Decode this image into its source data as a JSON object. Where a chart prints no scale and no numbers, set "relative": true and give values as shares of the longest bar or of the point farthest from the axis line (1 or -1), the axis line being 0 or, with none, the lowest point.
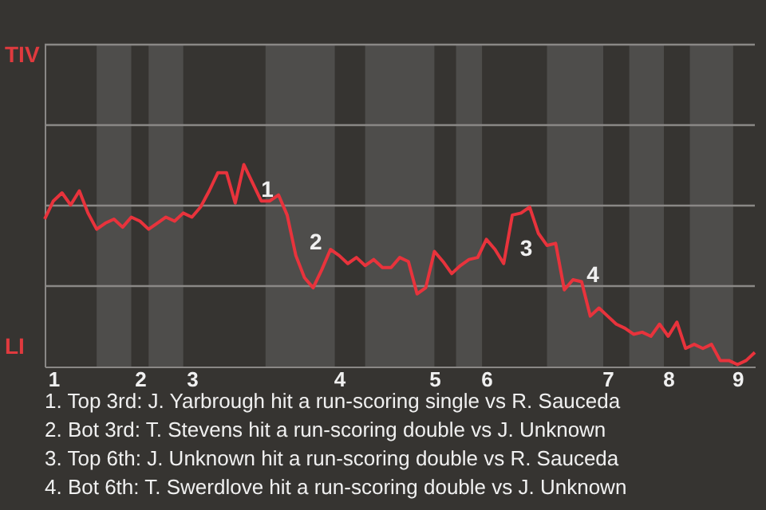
{
  "chart_data": {
    "type": "line",
    "relative": true,
    "marker": "none",
    "line_style": "solid",
    "ref_lines": [
      {
        "axis": "y",
        "value": 0.3985,
        "color": "#8a8886"
      },
      {
        "axis": "y",
        "value": 0.797,
        "color": "#8a8886"
      },
      {
        "axis": "y",
        "value": 1.1955,
        "color": "#8a8886"
      },
      {
        "axis": "y",
        "value": 1.594,
        "color": "#8a8886"
      }
    ],
    "categories": [
      null,
      "1",
      null,
      null,
      null,
      null,
      null,
      null,
      null,
      null,
      null,
      "2",
      null,
      null,
      null,
      null,
      null,
      "3",
      null,
      null,
      null,
      null,
      null,
      null,
      null,
      null,
      null,
      null,
      null,
      null,
      null,
      null,
      null,
      null,
      "4",
      null,
      null,
      null,
      null,
      null,
      null,
      null,
      null,
      null,
      null,
      "5",
      null,
      null,
      null,
      null,
      null,
      "6",
      null,
      null,
      null,
      null,
      null,
      null,
      null,
      null,
      null,
      null,
      null,
      null,
      null,
      "7",
      null,
      null,
      null,
      null,
      null,
      null,
      "8",
      null,
      null,
      null,
      null,
      null,
      null,
      null,
      "9",
      null,
      null
    ],
    "series": [
      {
        "color": "#e8333c",
        "values": [
          0.73,
          0.82,
          0.86,
          0.8,
          0.87,
          0.76,
          0.68,
          0.71,
          0.73,
          0.69,
          0.74,
          0.72,
          0.68,
          0.71,
          0.74,
          0.72,
          0.76,
          0.74,
          0.79,
          0.87,
          0.96,
          0.96,
          0.81,
          1.0,
          0.91,
          0.82,
          0.82,
          0.85,
          0.75,
          0.55,
          0.44,
          0.39,
          0.48,
          0.58,
          0.55,
          0.51,
          0.54,
          0.5,
          0.53,
          0.49,
          0.49,
          0.54,
          0.52,
          0.36,
          0.39,
          0.57,
          0.52,
          0.46,
          0.5,
          0.53,
          0.54,
          0.63,
          0.58,
          0.51,
          0.75,
          0.76,
          0.79,
          0.66,
          0.6,
          0.61,
          0.38,
          0.43,
          0.42,
          0.25,
          0.29,
          0.25,
          0.21,
          0.19,
          0.16,
          0.17,
          0.15,
          0.21,
          0.15,
          0.22,
          0.09,
          0.11,
          0.09,
          0.11,
          0.03,
          0.03,
          0.01,
          0.03,
          0.07
        ]
      }
    ],
    "annotations": [
      "TIV",
      "LI",
      "1",
      "2",
      "3",
      "4",
      "1. Top 3rd: J. Yarbrough hit a run-scoring single vs R. Sauceda",
      "2. Bot 3rd: T. Stevens hit a run-scoring double vs J. Unknown",
      "3. Top 6th: J. Unknown hit a run-scoring double vs R. Sauceda",
      "4. Bot 6th: T. Swerdlove hit a run-scoring double vs J. Unknown"
    ]
  }
}
